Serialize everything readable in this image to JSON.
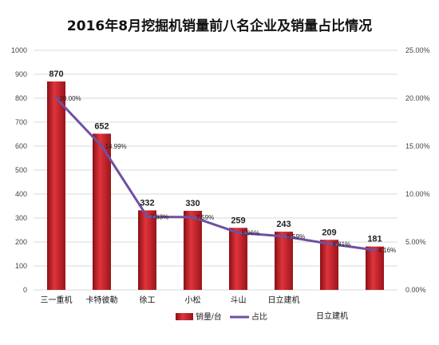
{
  "chart_data": {
    "type": "bar",
    "title": "2016年8月挖掘机销量前八名企业及销量占比情况",
    "categories": [
      "三一重机",
      "卡特彼勒",
      "徐工",
      "小松",
      "斗山",
      "日立建机",
      "",
      ""
    ],
    "extra_category_label": "日立建机",
    "series": [
      {
        "name": "销量/台",
        "type": "bar",
        "axis": "left",
        "values": [
          870,
          652,
          332,
          330,
          259,
          243,
          209,
          181
        ],
        "color": "#c0202a"
      },
      {
        "name": "占比",
        "type": "line",
        "axis": "right",
        "values": [
          20.0,
          14.99,
          7.63,
          7.59,
          5.96,
          5.59,
          4.81,
          4.16
        ],
        "labels": [
          "20.00%",
          "14.99%",
          "7.63%",
          "7.59%",
          "5.96%",
          "5.59%",
          "4.81%",
          "4.16%"
        ],
        "color": "#7050a0"
      }
    ],
    "value_labels": [
      "870",
      "652",
      "332",
      "330",
      "259",
      "243",
      "209",
      "181"
    ],
    "y_left": {
      "min": 0,
      "max": 1000,
      "step": 100,
      "ticks": [
        "0",
        "100",
        "200",
        "300",
        "400",
        "500",
        "600",
        "700",
        "800",
        "900",
        "1000"
      ]
    },
    "y_right": {
      "min": 0,
      "max": 25,
      "step": 5,
      "ticks": [
        "0.00%",
        "5.00%",
        "10.00%",
        "15.00%",
        "20.00%",
        "25.00%"
      ]
    },
    "grid": true,
    "legend": "bottom"
  }
}
